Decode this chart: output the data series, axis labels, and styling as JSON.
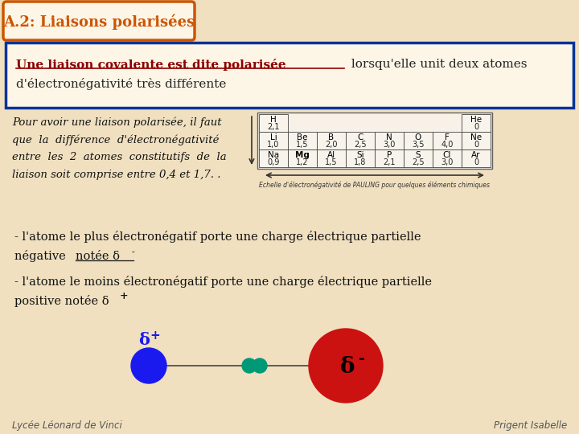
{
  "bg_color": "#f0e0c0",
  "title_text": "A.2: Liaisons polarisées",
  "title_color": "#cc5500",
  "title_bg": "#fdf5e6",
  "title_border": "#cc5500",
  "box1_border": "#003399",
  "box1_bg": "#fdf5e6",
  "text_bold_color": "#8b0000",
  "text_normal_color": "#222222",
  "italic_color": "#111111",
  "line_color": "#333333",
  "footer_left": "Lycée Léonard de Vinci",
  "footer_right": "Prigent Isabelle",
  "footer_color": "#555555",
  "atom_blue_color": "#1a1aee",
  "atom_teal_color": "#009977",
  "atom_red_color": "#cc1111"
}
